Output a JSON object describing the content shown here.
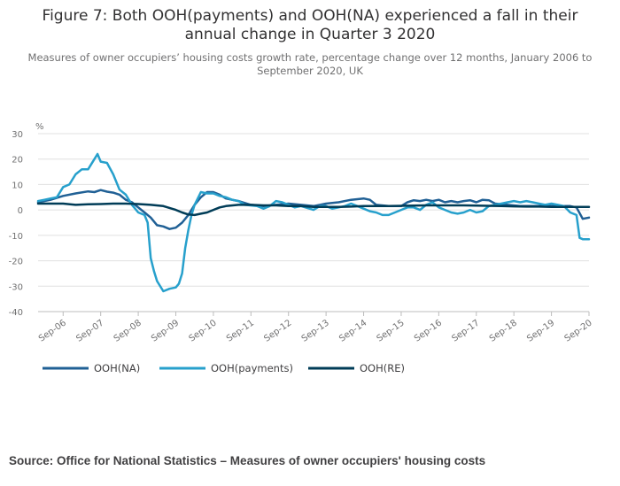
{
  "title": "Figure 7: Both OOH(payments) and OOH(NA) experienced a fall in their annual change in Quarter 3 2020",
  "subtitle": "Measures of owner occupiers’ housing costs growth rate, percentage change over 12 months, January 2006 to September 2020, UK",
  "source": "Source: Office for National Statistics – Measures of owner occupiers' housing costs",
  "colors": {
    "ooh_na": "#206095",
    "ooh_payments": "#27A0CC",
    "ooh_re": "#003C57",
    "grid": "#e0e0e0",
    "axis": "#bcbcbc"
  },
  "chart_data": {
    "type": "line",
    "ylabel": "%",
    "ylim": [
      -40,
      30
    ],
    "yticks": [
      30,
      20,
      10,
      0,
      -10,
      -20,
      -30,
      -40
    ],
    "x_start": "Jan 2006",
    "x_end": "Sep 2020",
    "xticks": [
      {
        "label": "Sep-06",
        "index": 8
      },
      {
        "label": "Sep-07",
        "index": 20
      },
      {
        "label": "Sep-08",
        "index": 32
      },
      {
        "label": "Sep-09",
        "index": 44
      },
      {
        "label": "Sep-10",
        "index": 56
      },
      {
        "label": "Sep-11",
        "index": 68
      },
      {
        "label": "Sep-12",
        "index": 80
      },
      {
        "label": "Sep-13",
        "index": 92
      },
      {
        "label": "Sep-14",
        "index": 104
      },
      {
        "label": "Sep-15",
        "index": 116
      },
      {
        "label": "Sep-16",
        "index": 128
      },
      {
        "label": "Sep-17",
        "index": 140
      },
      {
        "label": "Sep-18",
        "index": 152
      },
      {
        "label": "Sep-19",
        "index": 164
      },
      {
        "label": "Sep-20",
        "index": 176
      }
    ],
    "grid": true,
    "legend_position": "bottom",
    "series": [
      {
        "name": "OOH(NA)",
        "color": "#206095",
        "points": [
          [
            0,
            3
          ],
          [
            4,
            4
          ],
          [
            8,
            5.5
          ],
          [
            12,
            6.5
          ],
          [
            16,
            7.3
          ],
          [
            18,
            7
          ],
          [
            20,
            7.8
          ],
          [
            22,
            7.2
          ],
          [
            24,
            6.8
          ],
          [
            26,
            6
          ],
          [
            28,
            4
          ],
          [
            30,
            3
          ],
          [
            32,
            1
          ],
          [
            34,
            -1
          ],
          [
            36,
            -3
          ],
          [
            38,
            -6
          ],
          [
            40,
            -6.5
          ],
          [
            42,
            -7.5
          ],
          [
            44,
            -7
          ],
          [
            46,
            -5
          ],
          [
            48,
            -2
          ],
          [
            50,
            2
          ],
          [
            52,
            5
          ],
          [
            54,
            7
          ],
          [
            56,
            7
          ],
          [
            58,
            6
          ],
          [
            60,
            4.5
          ],
          [
            64,
            3.5
          ],
          [
            68,
            2
          ],
          [
            72,
            1.5
          ],
          [
            76,
            2
          ],
          [
            80,
            2.5
          ],
          [
            84,
            2
          ],
          [
            88,
            1.5
          ],
          [
            92,
            2.5
          ],
          [
            96,
            3
          ],
          [
            100,
            4
          ],
          [
            104,
            4.5
          ],
          [
            106,
            4
          ],
          [
            108,
            2
          ],
          [
            112,
            1.5
          ],
          [
            116,
            1.5
          ],
          [
            118,
            3
          ],
          [
            120,
            3.8
          ],
          [
            122,
            3.5
          ],
          [
            124,
            4
          ],
          [
            126,
            3.5
          ],
          [
            128,
            4
          ],
          [
            130,
            3
          ],
          [
            132,
            3.5
          ],
          [
            134,
            3
          ],
          [
            136,
            3.5
          ],
          [
            138,
            3.8
          ],
          [
            140,
            3
          ],
          [
            142,
            4
          ],
          [
            144,
            3.8
          ],
          [
            146,
            2.5
          ],
          [
            150,
            2
          ],
          [
            154,
            1.5
          ],
          [
            158,
            1.5
          ],
          [
            162,
            1.5
          ],
          [
            166,
            1.5
          ],
          [
            170,
            1.5
          ],
          [
            172,
            1
          ],
          [
            174,
            -3.5
          ],
          [
            176,
            -3
          ]
        ]
      },
      {
        "name": "OOH(payments)",
        "color": "#27A0CC",
        "points": [
          [
            0,
            3.5
          ],
          [
            2,
            4
          ],
          [
            4,
            4.5
          ],
          [
            6,
            5
          ],
          [
            8,
            9
          ],
          [
            10,
            10
          ],
          [
            12,
            14
          ],
          [
            14,
            16
          ],
          [
            16,
            16
          ],
          [
            18,
            20
          ],
          [
            19,
            22
          ],
          [
            20,
            19
          ],
          [
            22,
            18.5
          ],
          [
            24,
            14
          ],
          [
            26,
            8
          ],
          [
            28,
            6
          ],
          [
            30,
            2
          ],
          [
            32,
            -1
          ],
          [
            34,
            -2
          ],
          [
            35,
            -5
          ],
          [
            36,
            -19
          ],
          [
            37,
            -24
          ],
          [
            38,
            -28
          ],
          [
            40,
            -32
          ],
          [
            42,
            -31
          ],
          [
            44,
            -30.5
          ],
          [
            45,
            -29
          ],
          [
            46,
            -25
          ],
          [
            47,
            -15
          ],
          [
            48,
            -8
          ],
          [
            49,
            -2
          ],
          [
            50,
            2
          ],
          [
            52,
            7
          ],
          [
            54,
            6.5
          ],
          [
            56,
            6.5
          ],
          [
            58,
            5.5
          ],
          [
            60,
            5
          ],
          [
            62,
            4
          ],
          [
            64,
            3.5
          ],
          [
            66,
            2
          ],
          [
            70,
            1.5
          ],
          [
            72,
            0.5
          ],
          [
            74,
            1.5
          ],
          [
            76,
            3.5
          ],
          [
            78,
            3
          ],
          [
            80,
            2
          ],
          [
            82,
            1
          ],
          [
            84,
            1.5
          ],
          [
            88,
            0
          ],
          [
            90,
            1.5
          ],
          [
            92,
            1.5
          ],
          [
            94,
            0.5
          ],
          [
            96,
            1
          ],
          [
            98,
            1.5
          ],
          [
            100,
            2.5
          ],
          [
            102,
            1.5
          ],
          [
            104,
            0.5
          ],
          [
            106,
            -0.5
          ],
          [
            108,
            -1
          ],
          [
            110,
            -2
          ],
          [
            112,
            -2
          ],
          [
            114,
            -1
          ],
          [
            116,
            0
          ],
          [
            118,
            1
          ],
          [
            120,
            1
          ],
          [
            122,
            0
          ],
          [
            124,
            2
          ],
          [
            126,
            3
          ],
          [
            128,
            1
          ],
          [
            130,
            0
          ],
          [
            132,
            -1
          ],
          [
            134,
            -1.5
          ],
          [
            136,
            -1
          ],
          [
            138,
            0
          ],
          [
            140,
            -1
          ],
          [
            142,
            -0.5
          ],
          [
            144,
            1.5
          ],
          [
            146,
            2
          ],
          [
            148,
            2.5
          ],
          [
            150,
            3
          ],
          [
            152,
            3.5
          ],
          [
            154,
            3
          ],
          [
            156,
            3.5
          ],
          [
            158,
            3
          ],
          [
            160,
            2.5
          ],
          [
            162,
            2
          ],
          [
            164,
            2.5
          ],
          [
            166,
            2
          ],
          [
            168,
            1.5
          ],
          [
            170,
            -1
          ],
          [
            172,
            -2
          ],
          [
            173,
            -11
          ],
          [
            174,
            -11.5
          ],
          [
            176,
            -11.5
          ]
        ]
      },
      {
        "name": "OOH(RE)",
        "color": "#003C57",
        "points": [
          [
            0,
            2.5
          ],
          [
            4,
            2.5
          ],
          [
            8,
            2.5
          ],
          [
            12,
            2
          ],
          [
            16,
            2.2
          ],
          [
            20,
            2.3
          ],
          [
            24,
            2.5
          ],
          [
            28,
            2.5
          ],
          [
            32,
            2.3
          ],
          [
            36,
            2
          ],
          [
            40,
            1.5
          ],
          [
            44,
            0
          ],
          [
            46,
            -1
          ],
          [
            48,
            -1.8
          ],
          [
            50,
            -2
          ],
          [
            52,
            -1.5
          ],
          [
            54,
            -1
          ],
          [
            56,
            0
          ],
          [
            58,
            1
          ],
          [
            60,
            1.5
          ],
          [
            64,
            2
          ],
          [
            68,
            2
          ],
          [
            72,
            1.8
          ],
          [
            76,
            1.8
          ],
          [
            80,
            1.5
          ],
          [
            84,
            1.5
          ],
          [
            88,
            1.2
          ],
          [
            92,
            1.2
          ],
          [
            96,
            1.2
          ],
          [
            100,
            1.3
          ],
          [
            104,
            1.5
          ],
          [
            108,
            1.5
          ],
          [
            112,
            1.5
          ],
          [
            116,
            1.6
          ],
          [
            120,
            1.7
          ],
          [
            124,
            1.8
          ],
          [
            128,
            1.8
          ],
          [
            132,
            1.8
          ],
          [
            136,
            1.8
          ],
          [
            140,
            1.7
          ],
          [
            144,
            1.6
          ],
          [
            148,
            1.5
          ],
          [
            152,
            1.4
          ],
          [
            156,
            1.3
          ],
          [
            160,
            1.3
          ],
          [
            164,
            1.2
          ],
          [
            168,
            1.2
          ],
          [
            172,
            1.2
          ],
          [
            176,
            1.2
          ]
        ]
      }
    ]
  }
}
